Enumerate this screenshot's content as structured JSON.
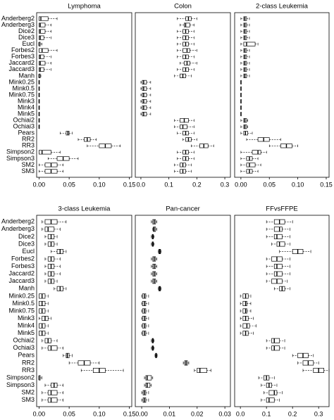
{
  "chart_data": [
    {
      "type": "box",
      "title": "Lymphoma",
      "categories": [
        "Anderberg2",
        "Anderberg3",
        "Dice2",
        "Dice3",
        "Eucl",
        "Forbes2",
        "Forbes3",
        "Jaccard2",
        "Jaccard3",
        "Manh",
        "Mink0.25",
        "Mink0.5",
        "Mink0.75",
        "Mink3",
        "Mink4",
        "Mink5",
        "Ochiai2",
        "Ochiai3",
        "Pears",
        "RR2",
        "RR3",
        "Simpson2",
        "Simpson3",
        "SM2",
        "SM3"
      ],
      "xlim": [
        -0.004,
        0.154
      ],
      "xticks": [
        {
          "value": 0,
          "label": "0.00"
        },
        0.05,
        {
          "value": 0.1,
          "label": "0.10"
        },
        0.15
      ],
      "values": [
        [
          0,
          0,
          0.003,
          0.015,
          0.03
        ],
        [
          0,
          0,
          0.002,
          0.01,
          0.02
        ],
        [
          0,
          0,
          0.002,
          0.01,
          0.02
        ],
        [
          0,
          0,
          0.002,
          0.008,
          0.02
        ],
        [
          0,
          0,
          0,
          0.002,
          0.005
        ],
        [
          0,
          0,
          0.005,
          0.015,
          0.03
        ],
        [
          0,
          0,
          0.002,
          0.008,
          0.02
        ],
        [
          0,
          0,
          0.002,
          0.01,
          0.02
        ],
        [
          0,
          0,
          0.002,
          0.008,
          0.02
        ],
        [
          0,
          0,
          0,
          0.002,
          0.003
        ],
        [
          0,
          0,
          0,
          0,
          0
        ],
        [
          0,
          0,
          0,
          0,
          0
        ],
        [
          0,
          0,
          0,
          0,
          0
        ],
        [
          0,
          0,
          0,
          0,
          0
        ],
        [
          0,
          0,
          0,
          0,
          0
        ],
        [
          0,
          0,
          0,
          0,
          0
        ],
        [
          0,
          0,
          0,
          0,
          0
        ],
        [
          0,
          0,
          0,
          0,
          0
        ],
        [
          0.035,
          0.045,
          0.048,
          0.05,
          0.055
        ],
        [
          0.065,
          0.075,
          0.08,
          0.085,
          0.095
        ],
        [
          0.08,
          0.1,
          0.11,
          0.12,
          0.135
        ],
        [
          0,
          0,
          0.005,
          0.02,
          0.035
        ],
        [
          0.015,
          0.03,
          0.04,
          0.05,
          0.065
        ],
        [
          0,
          0.01,
          0.02,
          0.03,
          0.04
        ],
        [
          0,
          0.01,
          0.02,
          0.03,
          0.04
        ]
      ]
    },
    {
      "type": "box",
      "title": "Colon",
      "xlim": [
        -0.02,
        0.32
      ],
      "xticks": [
        {
          "value": 0,
          "label": "0.0"
        },
        0.1,
        0.2,
        0.3
      ],
      "values": [
        [
          0.13,
          0.16,
          0.17,
          0.18,
          0.2
        ],
        [
          0.14,
          0.155,
          0.16,
          0.175,
          0.19
        ],
        [
          0.13,
          0.15,
          0.16,
          0.17,
          0.19
        ],
        [
          0.13,
          0.15,
          0.16,
          0.17,
          0.19
        ],
        [
          0.13,
          0.15,
          0.16,
          0.17,
          0.19
        ],
        [
          0.13,
          0.15,
          0.165,
          0.175,
          0.2
        ],
        [
          0.13,
          0.15,
          0.16,
          0.17,
          0.19
        ],
        [
          0.14,
          0.155,
          0.165,
          0.175,
          0.2
        ],
        [
          0.13,
          0.15,
          0.16,
          0.17,
          0.19
        ],
        [
          0.12,
          0.14,
          0.15,
          0.16,
          0.18
        ],
        [
          0,
          0.005,
          0.01,
          0.02,
          0.035
        ],
        [
          0,
          0.005,
          0.01,
          0.02,
          0.035
        ],
        [
          0,
          0.005,
          0.01,
          0.02,
          0.035
        ],
        [
          0,
          0.005,
          0.01,
          0.02,
          0.035
        ],
        [
          0,
          0.005,
          0.01,
          0.02,
          0.035
        ],
        [
          0,
          0.005,
          0.01,
          0.02,
          0.035
        ],
        [
          0.12,
          0.14,
          0.155,
          0.17,
          0.19
        ],
        [
          0.12,
          0.14,
          0.15,
          0.165,
          0.19
        ],
        [
          0.13,
          0.15,
          0.16,
          0.17,
          0.19
        ],
        [
          0.15,
          0.16,
          0.17,
          0.18,
          0.2
        ],
        [
          0.18,
          0.21,
          0.225,
          0.24,
          0.26
        ],
        [
          0.13,
          0.15,
          0.16,
          0.17,
          0.19
        ],
        [
          0.13,
          0.15,
          0.16,
          0.17,
          0.19
        ],
        [
          0.12,
          0.14,
          0.15,
          0.16,
          0.18
        ],
        [
          0.12,
          0.14,
          0.15,
          0.16,
          0.18
        ]
      ]
    },
    {
      "type": "box",
      "title": "2-class Leukemia",
      "xlim": [
        -0.011,
        0.155
      ],
      "xticks": [
        {
          "value": 0,
          "label": "0.00"
        },
        0.05,
        {
          "value": 0.1,
          "label": "0.10"
        },
        0.15
      ],
      "values": [
        [
          0,
          0.005,
          0.007,
          0.01,
          0.015
        ],
        [
          0,
          0.005,
          0.007,
          0.01,
          0.015
        ],
        [
          0,
          0.005,
          0.007,
          0.01,
          0.015
        ],
        [
          0,
          0.005,
          0.007,
          0.01,
          0.015
        ],
        [
          0,
          0.005,
          0.01,
          0.025,
          0.03
        ],
        [
          0,
          0.005,
          0.007,
          0.01,
          0.015
        ],
        [
          0,
          0.005,
          0.007,
          0.01,
          0.015
        ],
        [
          0,
          0.005,
          0.007,
          0.01,
          0.015
        ],
        [
          0,
          0.005,
          0.007,
          0.01,
          0.015
        ],
        [
          0,
          0.005,
          0.007,
          0.01,
          0.015
        ],
        [
          0,
          0,
          0,
          0,
          0
        ],
        [
          0,
          0,
          0,
          0,
          0
        ],
        [
          0,
          0,
          0,
          0,
          0
        ],
        [
          0,
          0,
          0,
          0,
          0
        ],
        [
          0,
          0,
          0,
          0,
          0
        ],
        [
          0,
          0,
          0,
          0,
          0
        ],
        [
          0,
          0.005,
          0.007,
          0.01,
          0.012
        ],
        [
          0,
          0.005,
          0.007,
          0.01,
          0.012
        ],
        [
          0,
          0.005,
          0.008,
          0.012,
          0.02
        ],
        [
          0.01,
          0.03,
          0.04,
          0.05,
          0.07
        ],
        [
          0.05,
          0.07,
          0.08,
          0.09,
          0.1
        ],
        [
          0,
          0.02,
          0.03,
          0.035,
          0.045
        ],
        [
          0,
          0.01,
          0.015,
          0.02,
          0.03
        ],
        [
          0,
          0.01,
          0.015,
          0.025,
          0.035
        ],
        [
          0,
          0.01,
          0.015,
          0.02,
          0.03
        ]
      ]
    },
    {
      "type": "box",
      "title": "3-class Leukemia",
      "categories": [
        "Anderberg2",
        "Anderberg3",
        "Dice2",
        "Dice3",
        "Eucl",
        "Forbes2",
        "Forbes3",
        "Jaccard2",
        "Jaccard3",
        "Manh",
        "Mink0.25",
        "Mink0.5",
        "Mink0.75",
        "Mink3",
        "Mink4",
        "Mink5",
        "Ochiai2",
        "Ochiai3",
        "Pears",
        "RR2",
        "RR3",
        "Simpson2",
        "Simpson3",
        "SM2",
        "SM3"
      ],
      "xlim": [
        -0.004,
        0.154
      ],
      "xticks": [
        {
          "value": 0,
          "label": "0.00"
        },
        0.05,
        {
          "value": 0.1,
          "label": "0.10"
        },
        0.15
      ],
      "values": [
        [
          0.005,
          0.01,
          0.02,
          0.03,
          0.045
        ],
        [
          0.005,
          0.01,
          0.015,
          0.025,
          0.035
        ],
        [
          0.01,
          0.015,
          0.02,
          0.025,
          0.03
        ],
        [
          0.01,
          0.015,
          0.02,
          0.025,
          0.03
        ],
        [
          0.02,
          0.03,
          0.035,
          0.04,
          0.045
        ],
        [
          0.01,
          0.015,
          0.02,
          0.025,
          0.035
        ],
        [
          0.01,
          0.015,
          0.02,
          0.025,
          0.035
        ],
        [
          0.01,
          0.015,
          0.02,
          0.025,
          0.035
        ],
        [
          0.01,
          0.015,
          0.02,
          0.025,
          0.03
        ],
        [
          0.025,
          0.03,
          0.035,
          0.04,
          0.045
        ],
        [
          0,
          0,
          0.005,
          0.01,
          0.015
        ],
        [
          0,
          0,
          0.005,
          0.01,
          0.015
        ],
        [
          0,
          0,
          0.005,
          0.01,
          0.015
        ],
        [
          0,
          0.005,
          0.01,
          0.015,
          0.02
        ],
        [
          0,
          0,
          0.005,
          0.01,
          0.015
        ],
        [
          0,
          0,
          0.005,
          0.01,
          0.015
        ],
        [
          0.005,
          0.01,
          0.015,
          0.02,
          0.03
        ],
        [
          0.005,
          0.015,
          0.02,
          0.03,
          0.04
        ],
        [
          0.04,
          0.045,
          0.047,
          0.05,
          0.055
        ],
        [
          0.05,
          0.065,
          0.075,
          0.085,
          0.1
        ],
        [
          0.07,
          0.09,
          0.1,
          0.11,
          0.14
        ],
        [
          0,
          0,
          0,
          0.002,
          0.005
        ],
        [
          0.01,
          0.02,
          0.025,
          0.03,
          0.04
        ],
        [
          0.005,
          0.015,
          0.02,
          0.03,
          0.04
        ],
        [
          0.005,
          0.015,
          0.02,
          0.03,
          0.04
        ]
      ]
    },
    {
      "type": "box",
      "title": "Pan-cancer",
      "xlim": [
        -0.0023,
        0.032
      ],
      "xticks": [
        {
          "value": 0,
          "label": "0.00"
        },
        0.01,
        0.02,
        0.03
      ],
      "values": [
        [
          0.0035,
          0.004,
          0.0045,
          0.005,
          0.0055
        ],
        [
          0.004,
          0.0042,
          0.0045,
          0.005,
          0.0055
        ],
        [
          0.0035,
          0.0038,
          0.004,
          0.0042,
          0.0045
        ],
        [
          0.0035,
          0.0038,
          0.004,
          0.0042,
          0.0045
        ],
        [
          0.006,
          0.0062,
          0.0065,
          0.0068,
          0.007
        ],
        [
          0.0035,
          0.004,
          0.0045,
          0.005,
          0.0055
        ],
        [
          0.0035,
          0.004,
          0.0045,
          0.005,
          0.0055
        ],
        [
          0.0035,
          0.004,
          0.0045,
          0.005,
          0.0055
        ],
        [
          0.0035,
          0.004,
          0.0045,
          0.005,
          0.0055
        ],
        [
          0.006,
          0.0062,
          0.0065,
          0.0068,
          0.007
        ],
        [
          0,
          0.0003,
          0.001,
          0.0015,
          0.0025
        ],
        [
          0,
          0.0003,
          0.001,
          0.0015,
          0.0025
        ],
        [
          0,
          0.0003,
          0.001,
          0.0015,
          0.0025
        ],
        [
          0,
          0.0003,
          0.001,
          0.0015,
          0.0025
        ],
        [
          0,
          0.0003,
          0.001,
          0.0015,
          0.0025
        ],
        [
          0,
          0.0003,
          0.001,
          0.0015,
          0.0025
        ],
        [
          0.0035,
          0.0038,
          0.004,
          0.0042,
          0.0045
        ],
        [
          0.0035,
          0.0038,
          0.004,
          0.0042,
          0.0045
        ],
        [
          0.0048,
          0.005,
          0.0052,
          0.0054,
          0.0056
        ],
        [
          0.015,
          0.0155,
          0.016,
          0.0165,
          0.017
        ],
        [
          0.019,
          0.02,
          0.021,
          0.0235,
          0.025
        ],
        [
          0.001,
          0.0015,
          0.002,
          0.0035,
          0.004
        ],
        [
          0.001,
          0.0015,
          0.002,
          0.003,
          0.0035
        ],
        [
          0,
          0.0005,
          0.001,
          0.0015,
          0.0025
        ],
        [
          0,
          0.0005,
          0.001,
          0.0015,
          0.0025
        ]
      ]
    },
    {
      "type": "box",
      "title": "FFvsFFPE",
      "xlim": [
        -0.022,
        0.34
      ],
      "xticks": [
        {
          "value": 0,
          "label": "0.0"
        },
        0.1,
        0.2,
        0.3
      ],
      "values": [
        [
          0.1,
          0.13,
          0.15,
          0.17,
          0.2
        ],
        [
          0.1,
          0.13,
          0.15,
          0.16,
          0.19
        ],
        [
          0.1,
          0.13,
          0.14,
          0.16,
          0.19
        ],
        [
          0.12,
          0.14,
          0.15,
          0.17,
          0.19
        ],
        [
          0.15,
          0.2,
          0.22,
          0.24,
          0.27
        ],
        [
          0.1,
          0.12,
          0.14,
          0.16,
          0.19
        ],
        [
          0.1,
          0.13,
          0.14,
          0.16,
          0.19
        ],
        [
          0.1,
          0.13,
          0.14,
          0.16,
          0.19
        ],
        [
          0.1,
          0.12,
          0.14,
          0.16,
          0.18
        ],
        [
          0.13,
          0.15,
          0.16,
          0.17,
          0.19
        ],
        [
          0,
          0.01,
          0.02,
          0.03,
          0.04
        ],
        [
          0,
          0.01,
          0.02,
          0.025,
          0.04
        ],
        [
          0,
          0.01,
          0.02,
          0.025,
          0.04
        ],
        [
          0,
          0.01,
          0.02,
          0.03,
          0.05
        ],
        [
          0,
          0.01,
          0.025,
          0.035,
          0.06
        ],
        [
          0,
          0.01,
          0.02,
          0.03,
          0.05
        ],
        [
          0.1,
          0.12,
          0.13,
          0.15,
          0.17
        ],
        [
          0.1,
          0.12,
          0.13,
          0.15,
          0.17
        ],
        [
          0.2,
          0.22,
          0.24,
          0.26,
          0.28
        ],
        [
          0.22,
          0.24,
          0.26,
          0.28,
          0.3
        ],
        [
          0.24,
          0.28,
          0.3,
          0.32,
          0.34
        ],
        [
          0.07,
          0.09,
          0.1,
          0.11,
          0.13
        ],
        [
          0.08,
          0.1,
          0.11,
          0.12,
          0.14
        ],
        [
          0.09,
          0.11,
          0.13,
          0.14,
          0.16
        ],
        [
          0.08,
          0.1,
          0.11,
          0.13,
          0.15
        ]
      ]
    }
  ]
}
